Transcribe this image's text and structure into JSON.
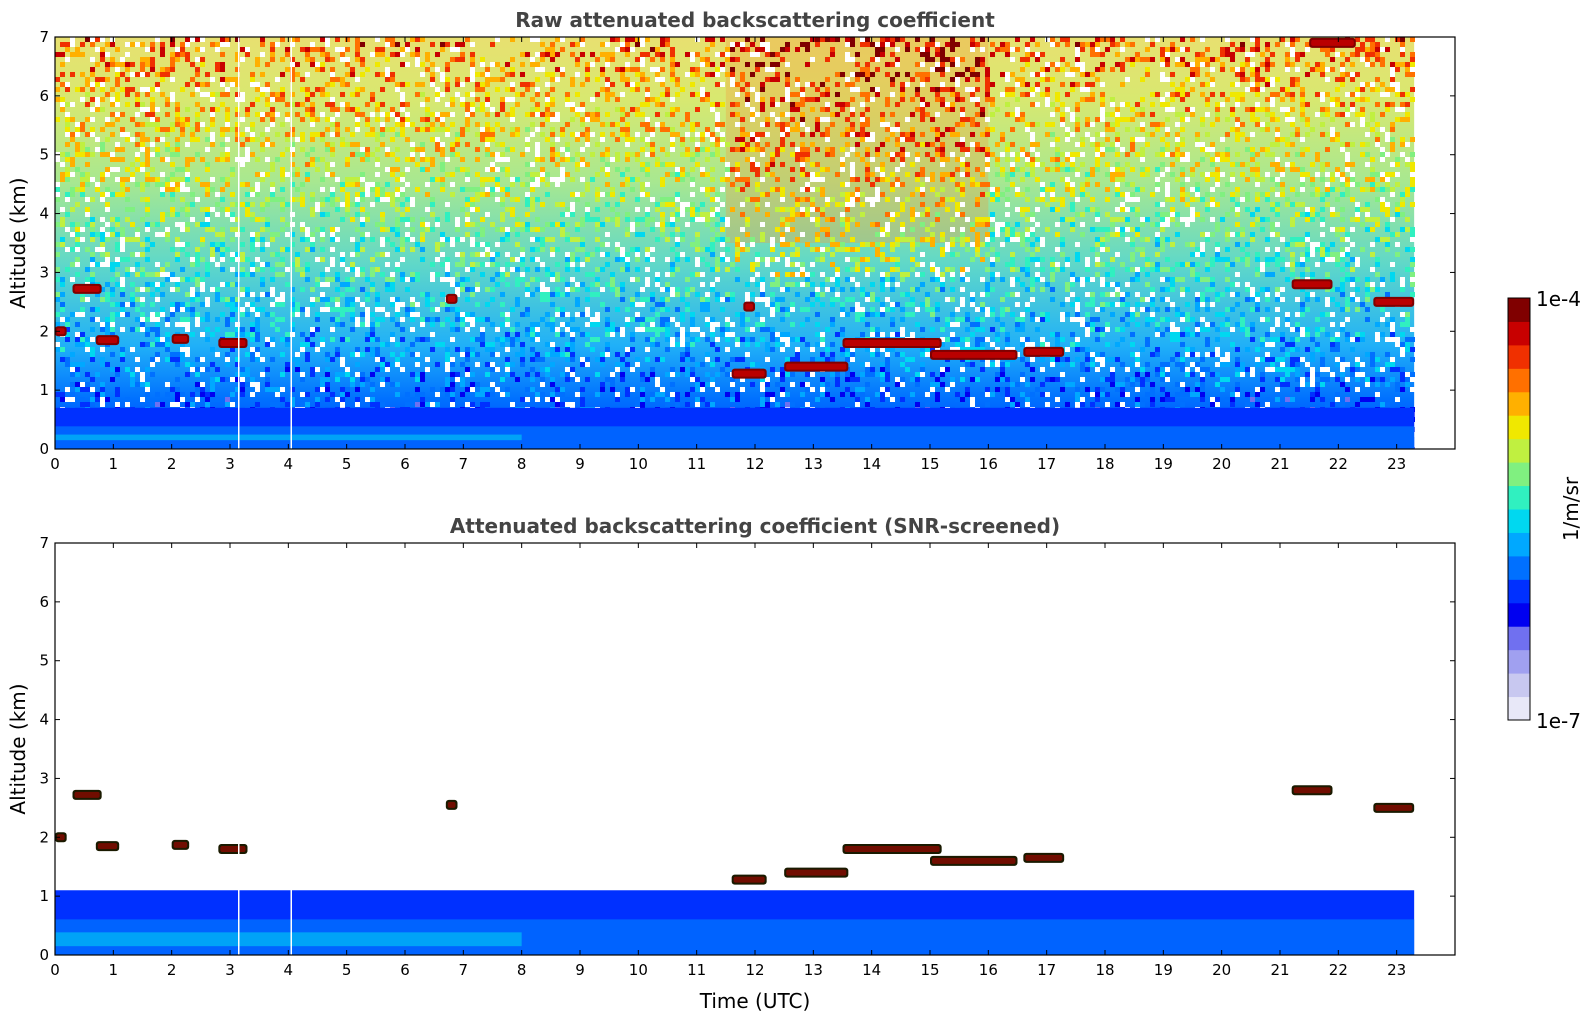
{
  "chart_data": [
    {
      "type": "heatmap",
      "title": "Raw attenuated backscattering coefficient",
      "xlabel": "",
      "ylabel": "Altitude (km)",
      "xlim": [
        0,
        24
      ],
      "ylim": [
        0,
        7
      ],
      "x_ticks": [
        0,
        1,
        2,
        3,
        4,
        5,
        6,
        7,
        8,
        9,
        10,
        11,
        12,
        13,
        14,
        15,
        16,
        17,
        18,
        19,
        20,
        21,
        22,
        23
      ],
      "y_ticks": [
        0,
        1,
        2,
        3,
        4,
        5,
        6,
        7
      ],
      "data_end_time": 23.3,
      "grid": false,
      "features": [
        {
          "kind": "boundary-layer",
          "x_start": 0,
          "x_end": 23.3,
          "y_top": 0.7
        },
        {
          "kind": "cloud",
          "x_start": 0.0,
          "x_end": 0.2,
          "y": 2.0
        },
        {
          "kind": "cloud",
          "x_start": 0.7,
          "x_end": 1.1,
          "y": 1.85
        },
        {
          "kind": "cloud",
          "x_start": 2.0,
          "x_end": 2.3,
          "y": 1.87
        },
        {
          "kind": "cloud",
          "x_start": 2.8,
          "x_end": 3.3,
          "y": 1.8
        },
        {
          "kind": "cloud",
          "x_start": 0.3,
          "x_end": 0.8,
          "y": 2.72
        },
        {
          "kind": "cloud",
          "x_start": 6.7,
          "x_end": 6.9,
          "y": 2.55
        },
        {
          "kind": "cloud",
          "x_start": 11.6,
          "x_end": 12.2,
          "y": 1.28
        },
        {
          "kind": "cloud",
          "x_start": 11.8,
          "x_end": 12.0,
          "y": 2.42
        },
        {
          "kind": "cloud",
          "x_start": 12.5,
          "x_end": 13.6,
          "y": 1.4
        },
        {
          "kind": "cloud",
          "x_start": 13.5,
          "x_end": 15.2,
          "y": 1.8
        },
        {
          "kind": "cloud",
          "x_start": 15.0,
          "x_end": 16.5,
          "y": 1.6
        },
        {
          "kind": "cloud",
          "x_start": 16.6,
          "x_end": 17.3,
          "y": 1.65
        },
        {
          "kind": "cloud",
          "x_start": 21.2,
          "x_end": 21.9,
          "y": 2.8
        },
        {
          "kind": "cloud",
          "x_start": 22.6,
          "x_end": 23.3,
          "y": 2.5
        },
        {
          "kind": "cloud",
          "x_start": 21.5,
          "x_end": 22.3,
          "y": 6.9
        }
      ]
    },
    {
      "type": "heatmap",
      "title": "Attenuated backscattering coefficient (SNR-screened)",
      "xlabel": "Time (UTC)",
      "ylabel": "Altitude (km)",
      "xlim": [
        0,
        24
      ],
      "ylim": [
        0,
        7
      ],
      "x_ticks": [
        0,
        1,
        2,
        3,
        4,
        5,
        6,
        7,
        8,
        9,
        10,
        11,
        12,
        13,
        14,
        15,
        16,
        17,
        18,
        19,
        20,
        21,
        22,
        23
      ],
      "y_ticks": [
        0,
        1,
        2,
        3,
        4,
        5,
        6,
        7
      ],
      "data_end_time": 23.3,
      "grid": false,
      "features": [
        {
          "kind": "boundary-layer",
          "x_start": 0,
          "x_end": 23.3,
          "y_top": 1.1
        },
        {
          "kind": "cloud",
          "x_start": 0.0,
          "x_end": 0.2,
          "y": 2.0
        },
        {
          "kind": "cloud",
          "x_start": 0.7,
          "x_end": 1.1,
          "y": 1.85
        },
        {
          "kind": "cloud",
          "x_start": 2.0,
          "x_end": 2.3,
          "y": 1.87
        },
        {
          "kind": "cloud",
          "x_start": 2.8,
          "x_end": 3.3,
          "y": 1.8
        },
        {
          "kind": "cloud",
          "x_start": 0.3,
          "x_end": 0.8,
          "y": 2.72
        },
        {
          "kind": "cloud",
          "x_start": 6.7,
          "x_end": 6.9,
          "y": 2.55
        },
        {
          "kind": "cloud",
          "x_start": 11.6,
          "x_end": 12.2,
          "y": 1.28
        },
        {
          "kind": "cloud",
          "x_start": 12.5,
          "x_end": 13.6,
          "y": 1.4
        },
        {
          "kind": "cloud",
          "x_start": 13.5,
          "x_end": 15.2,
          "y": 1.8
        },
        {
          "kind": "cloud",
          "x_start": 15.0,
          "x_end": 16.5,
          "y": 1.6
        },
        {
          "kind": "cloud",
          "x_start": 16.6,
          "x_end": 17.3,
          "y": 1.65
        },
        {
          "kind": "cloud",
          "x_start": 21.2,
          "x_end": 21.9,
          "y": 2.8
        },
        {
          "kind": "cloud",
          "x_start": 22.6,
          "x_end": 23.3,
          "y": 2.5
        }
      ]
    }
  ],
  "colorbar": {
    "label": "1/m/sr",
    "max_label": "1e-4",
    "min_label": "1e-7",
    "scale": "log",
    "range": [
      1e-07,
      0.0001
    ],
    "colors": [
      "#e8e8f8",
      "#c8c8f0",
      "#a0a0f0",
      "#7070f0",
      "#0000f0",
      "#0030ff",
      "#0070ff",
      "#00a8ff",
      "#00d8f0",
      "#30f0c0",
      "#80f080",
      "#c0f040",
      "#f0e800",
      "#ffb000",
      "#ff7000",
      "#f03000",
      "#c80000",
      "#800000"
    ]
  }
}
